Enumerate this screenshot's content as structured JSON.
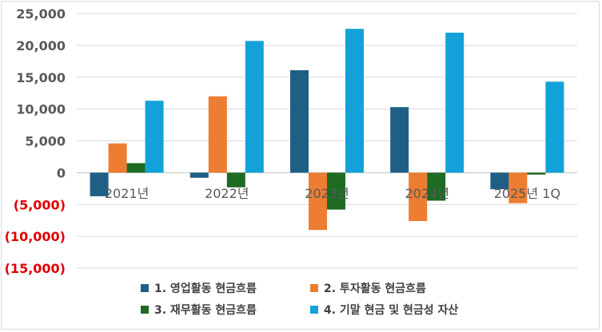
{
  "chart_data": {
    "type": "bar",
    "title": "",
    "xlabel": "",
    "ylabel": "",
    "categories": [
      "2021년",
      "2022년",
      "2023년",
      "2024년",
      "2025년 1Q"
    ],
    "series": [
      {
        "name": "1. 영업활동 현금흐름",
        "color": "#1f5f85",
        "values": [
          -3700,
          -800,
          16100,
          10300,
          -2600
        ]
      },
      {
        "name": "2. 투자활동 현금흐름",
        "color": "#ed7d31",
        "values": [
          4600,
          12000,
          -9000,
          -7600,
          -4800
        ]
      },
      {
        "name": "3. 재무활동 현금흐름",
        "color": "#1e6b24",
        "values": [
          1500,
          -2300,
          -5800,
          -4400,
          -300
        ]
      },
      {
        "name": "4. 기말 현금 및 현금성 자산",
        "color": "#12a2d9",
        "values": [
          11300,
          20700,
          22600,
          22000,
          14300
        ]
      }
    ],
    "ylim": [
      -15000,
      25000
    ],
    "yticks": [
      25000,
      20000,
      15000,
      10000,
      5000,
      0,
      -5000,
      -10000,
      -15000
    ],
    "ytick_labels": [
      "25,000",
      "20,000",
      "15,000",
      "10,000",
      "5,000",
      "0",
      "(5,000)",
      "(10,000)",
      "(15,000)"
    ],
    "negative_tick_color": "#e00000",
    "grid": true,
    "legend_position": "bottom"
  }
}
